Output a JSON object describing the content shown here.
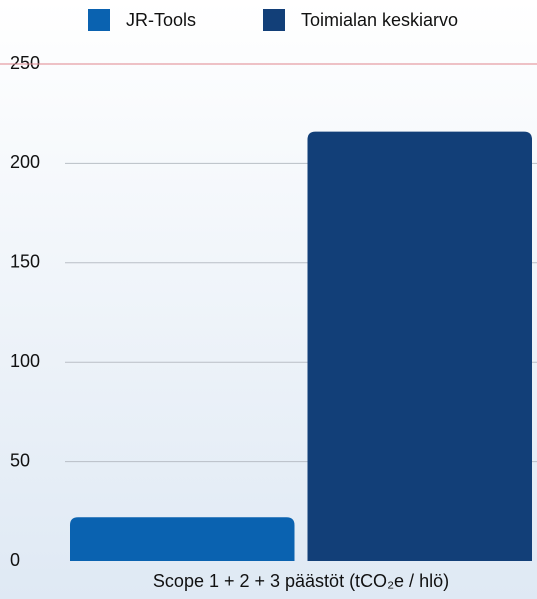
{
  "chart_data": {
    "type": "bar",
    "categories": [
      "Scope 1 + 2 + 3 päästöt (tCO₂e / hlö)"
    ],
    "series": [
      {
        "name": "JR-Tools",
        "color": "#0a62b0",
        "values": [
          22
        ]
      },
      {
        "name": "Toimialan keskiarvo",
        "color": "#123f78",
        "values": [
          216
        ]
      }
    ],
    "ylim": [
      0,
      250
    ],
    "yticks": [
      0,
      50,
      100,
      150,
      200,
      250
    ],
    "grid": true,
    "legend": "top"
  }
}
